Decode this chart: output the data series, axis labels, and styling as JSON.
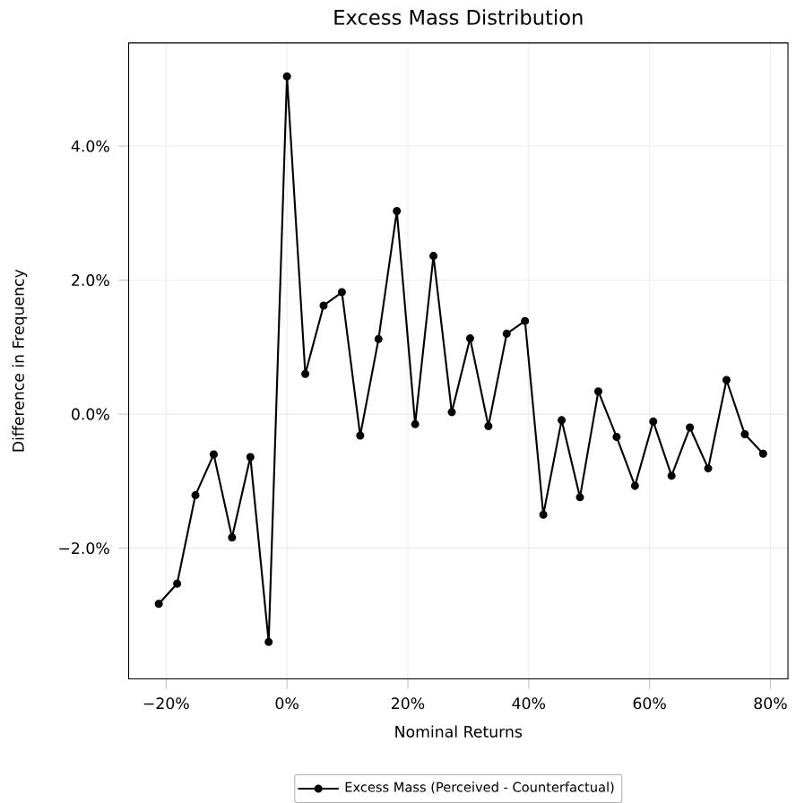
{
  "chart_data": {
    "type": "line",
    "title": "Excess Mass Distribution",
    "xlabel": "Nominal Returns",
    "ylabel": "Difference in Frequency",
    "x": [
      -21.21,
      -18.18,
      -15.15,
      -12.12,
      -9.09,
      -6.06,
      -3.03,
      0,
      3.03,
      6.06,
      9.09,
      12.12,
      15.15,
      18.18,
      21.21,
      24.24,
      27.27,
      30.3,
      33.33,
      36.36,
      39.39,
      42.42,
      45.45,
      48.48,
      51.52,
      54.55,
      57.58,
      60.61,
      63.64,
      66.67,
      69.7,
      72.73,
      75.76,
      78.79
    ],
    "series": [
      {
        "name": "Excess Mass (Perceived - Counterfactual)",
        "color": "#000000",
        "values": [
          -2.83,
          -2.53,
          -1.21,
          -0.6,
          -1.84,
          -0.64,
          -3.4,
          5.04,
          0.6,
          1.62,
          1.82,
          -0.32,
          1.12,
          3.03,
          -0.15,
          2.36,
          0.03,
          1.13,
          -0.18,
          1.2,
          1.39,
          -1.5,
          -0.09,
          -1.24,
          0.34,
          -0.34,
          -1.07,
          -0.11,
          -0.92,
          -0.2,
          -0.81,
          0.51,
          -0.3,
          -0.59
        ]
      }
    ],
    "xlim": [
      -26.2,
      82.9
    ],
    "ylim": [
      -3.95,
      5.54
    ],
    "xticks": [
      {
        "value": -20,
        "label": "−20%"
      },
      {
        "value": 0,
        "label": "0%"
      },
      {
        "value": 20,
        "label": "20%"
      },
      {
        "value": 40,
        "label": "40%"
      },
      {
        "value": 60,
        "label": "60%"
      },
      {
        "value": 80,
        "label": "80%"
      }
    ],
    "yticks": [
      {
        "value": -2,
        "label": "−2.0%"
      },
      {
        "value": 0,
        "label": "0.0%"
      },
      {
        "value": 2,
        "label": "2.0%"
      },
      {
        "value": 4,
        "label": "4.0%"
      }
    ],
    "grid": true,
    "legend": "bottom",
    "marker": "circle",
    "line_style": "solid"
  }
}
